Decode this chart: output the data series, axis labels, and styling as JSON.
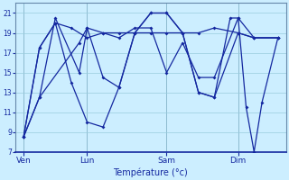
{
  "xlabel": "Température (°c)",
  "bg_color": "#cceeff",
  "line_color": "#1428a0",
  "grid_color": "#99ccdd",
  "vline_color": "#6688aa",
  "ylim": [
    7,
    22
  ],
  "yticks": [
    7,
    9,
    11,
    13,
    15,
    17,
    19,
    21
  ],
  "xlim": [
    0,
    34
  ],
  "day_labels": [
    "Ven",
    "Lun",
    "Sam",
    "Dim"
  ],
  "day_positions": [
    1,
    9,
    19,
    28
  ],
  "series": [
    {
      "x": [
        1,
        3,
        8,
        9,
        11,
        13,
        15,
        17,
        19,
        21,
        23,
        25,
        28,
        30,
        33
      ],
      "y": [
        8.5,
        12.5,
        18.0,
        19.5,
        19.0,
        19.0,
        19.0,
        19.0,
        19.0,
        19.0,
        19.0,
        19.5,
        19.0,
        18.5,
        18.5
      ]
    },
    {
      "x": [
        1,
        3,
        5,
        8,
        9,
        11,
        13,
        15,
        17,
        19,
        21,
        23,
        25,
        28,
        30,
        33
      ],
      "y": [
        8.5,
        12.5,
        20.5,
        15.0,
        19.5,
        14.5,
        13.5,
        19.0,
        21.0,
        21.0,
        19.0,
        13.0,
        12.5,
        19.0,
        18.5,
        18.5
      ]
    },
    {
      "x": [
        1,
        3,
        5,
        7,
        9,
        11,
        13,
        15,
        17,
        19,
        21,
        23,
        25,
        28,
        30,
        33
      ],
      "y": [
        8.5,
        17.5,
        20.0,
        19.5,
        18.5,
        19.0,
        18.5,
        19.5,
        19.5,
        15.0,
        18.0,
        14.5,
        14.5,
        20.5,
        18.5,
        18.5
      ]
    },
    {
      "x": [
        1,
        3,
        5,
        7,
        9,
        11,
        13,
        15,
        17,
        19,
        21,
        23,
        25,
        27,
        28,
        29,
        30,
        31,
        33
      ],
      "y": [
        8.5,
        17.5,
        20.0,
        14.0,
        10.0,
        9.5,
        13.5,
        19.0,
        21.0,
        21.0,
        19.0,
        13.0,
        12.5,
        20.5,
        20.5,
        11.5,
        7.0,
        12.0,
        18.5
      ]
    }
  ]
}
